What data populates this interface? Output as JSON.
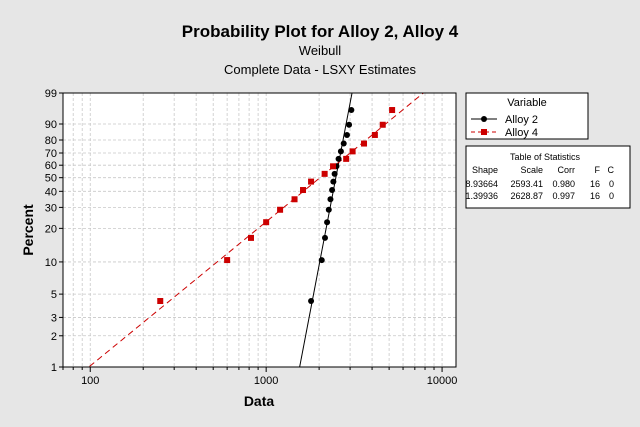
{
  "chart_data": {
    "type": "scatter",
    "title": "Probability Plot for Alloy 2, Alloy 4",
    "subtitle": "Weibull",
    "subtitle2": "Complete Data - LSXY Estimates",
    "xlabel": "Data",
    "ylabel": "Percent",
    "x_scale": "log",
    "y_scale": "weibull",
    "xlim": [
      70,
      12000
    ],
    "ylim": [
      1,
      99
    ],
    "x_ticks": [
      100,
      1000,
      10000
    ],
    "x_tick_labels": [
      "100",
      "1000",
      "10000"
    ],
    "y_ticks": [
      1,
      2,
      3,
      5,
      10,
      20,
      30,
      40,
      50,
      60,
      70,
      80,
      90,
      99
    ],
    "y_tick_labels": [
      "1",
      "2",
      "3",
      "5",
      "10",
      "20",
      "30",
      "40",
      "50",
      "60",
      "70",
      "80",
      "90",
      "99"
    ],
    "grid": true,
    "legend_title": "Variable",
    "legend_position": "right",
    "series": [
      {
        "name": "Alloy 2",
        "color": "#000000",
        "marker": "circle",
        "line_style": "solid",
        "shape": 8.93664,
        "scale": 2593.41,
        "points": [
          {
            "x": 1800,
            "y": 4.3
          },
          {
            "x": 2070,
            "y": 10.4
          },
          {
            "x": 2160,
            "y": 16.5
          },
          {
            "x": 2220,
            "y": 22.6
          },
          {
            "x": 2270,
            "y": 28.7
          },
          {
            "x": 2320,
            "y": 34.8
          },
          {
            "x": 2370,
            "y": 40.9
          },
          {
            "x": 2410,
            "y": 47.0
          },
          {
            "x": 2450,
            "y": 53.0
          },
          {
            "x": 2510,
            "y": 59.1
          },
          {
            "x": 2580,
            "y": 65.2
          },
          {
            "x": 2660,
            "y": 71.3
          },
          {
            "x": 2760,
            "y": 77.4
          },
          {
            "x": 2880,
            "y": 83.5
          },
          {
            "x": 2960,
            "y": 89.6
          },
          {
            "x": 3050,
            "y": 95.7
          }
        ]
      },
      {
        "name": "Alloy 4",
        "color": "#cc0000",
        "marker": "square",
        "line_style": "dashed",
        "shape": 1.39936,
        "scale": 2628.87,
        "points": [
          {
            "x": 250,
            "y": 4.3
          },
          {
            "x": 600,
            "y": 10.4
          },
          {
            "x": 820,
            "y": 16.5
          },
          {
            "x": 1000,
            "y": 22.6
          },
          {
            "x": 1200,
            "y": 28.7
          },
          {
            "x": 1450,
            "y": 34.8
          },
          {
            "x": 1620,
            "y": 40.9
          },
          {
            "x": 1800,
            "y": 47.0
          },
          {
            "x": 2150,
            "y": 53.0
          },
          {
            "x": 2400,
            "y": 59.1
          },
          {
            "x": 2850,
            "y": 65.2
          },
          {
            "x": 3100,
            "y": 71.3
          },
          {
            "x": 3600,
            "y": 77.4
          },
          {
            "x": 4150,
            "y": 83.5
          },
          {
            "x": 4600,
            "y": 89.6
          },
          {
            "x": 5200,
            "y": 95.7
          }
        ]
      }
    ]
  },
  "stats_table": {
    "title": "Table of Statistics",
    "headers": [
      "Shape",
      "Scale",
      "Corr",
      "F",
      "C"
    ],
    "rows": [
      [
        "8.93664",
        "2593.41",
        "0.980",
        "16",
        "0"
      ],
      [
        "1.39936",
        "2628.87",
        "0.997",
        "16",
        "0"
      ]
    ]
  }
}
